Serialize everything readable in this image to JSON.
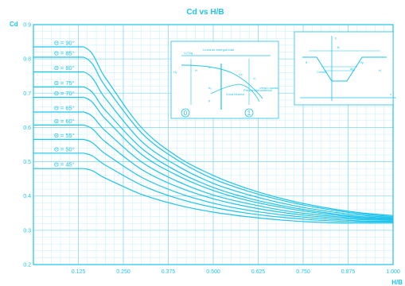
{
  "chart_data": {
    "type": "line",
    "title": "Cd vs H/B",
    "xlabel": "H/B",
    "ylabel": "Cd",
    "xlim": [
      0,
      1.0
    ],
    "ylim": [
      0.2,
      0.9
    ],
    "x_ticks": [
      "0.125",
      "0.250",
      "0.375",
      "0.500",
      "0.625",
      "0.750",
      "0.875",
      "1.000"
    ],
    "y_ticks": [
      "0.2",
      "0.3",
      "0.4",
      "0.5",
      "0.6",
      "0.7",
      "0.8",
      "0.9"
    ],
    "grid": true,
    "legend_position": "left",
    "x": [
      0,
      0.14,
      0.2,
      0.3,
      0.4,
      0.5,
      0.6,
      0.7,
      0.8,
      0.9,
      1.0
    ],
    "series": [
      {
        "name": "Θ = 90°",
        "values": [
          0.835,
          0.835,
          0.745,
          0.6,
          0.515,
          0.46,
          0.42,
          0.39,
          0.368,
          0.352,
          0.343
        ]
      },
      {
        "name": "Θ = 85°",
        "values": [
          0.805,
          0.805,
          0.72,
          0.585,
          0.505,
          0.45,
          0.413,
          0.385,
          0.364,
          0.349,
          0.34
        ]
      },
      {
        "name": "Θ = 80°",
        "values": [
          0.762,
          0.762,
          0.685,
          0.56,
          0.488,
          0.437,
          0.403,
          0.377,
          0.358,
          0.345,
          0.337
        ]
      },
      {
        "name": "Θ = 75°",
        "values": [
          0.718,
          0.718,
          0.65,
          0.54,
          0.472,
          0.425,
          0.393,
          0.37,
          0.353,
          0.341,
          0.335
        ]
      },
      {
        "name": "Θ = 70°",
        "values": [
          0.688,
          0.688,
          0.625,
          0.522,
          0.46,
          0.416,
          0.386,
          0.365,
          0.349,
          0.338,
          0.333
        ]
      },
      {
        "name": "Θ = 65°",
        "values": [
          0.645,
          0.645,
          0.59,
          0.5,
          0.443,
          0.403,
          0.377,
          0.357,
          0.344,
          0.335,
          0.331
        ]
      },
      {
        "name": "Θ = 60°",
        "values": [
          0.607,
          0.607,
          0.558,
          0.478,
          0.427,
          0.392,
          0.368,
          0.351,
          0.339,
          0.332,
          0.329
        ]
      },
      {
        "name": "Θ = 55°",
        "values": [
          0.565,
          0.565,
          0.523,
          0.455,
          0.41,
          0.379,
          0.358,
          0.344,
          0.334,
          0.328,
          0.326
        ]
      },
      {
        "name": "Θ = 50°",
        "values": [
          0.525,
          0.525,
          0.49,
          0.432,
          0.393,
          0.367,
          0.349,
          0.337,
          0.329,
          0.325,
          0.324
        ]
      },
      {
        "name": "Θ = 45°",
        "values": [
          0.48,
          0.48,
          0.452,
          0.405,
          0.374,
          0.353,
          0.339,
          0.329,
          0.323,
          0.321,
          0.321
        ]
      }
    ],
    "inset_left": {
      "labels": [
        "Línea de energía total",
        "Vena Líquida",
        "Presión Atmosférica",
        "Zona Muerta"
      ],
      "sections": [
        "0",
        "1"
      ],
      "symbols": [
        "V₀²/2g",
        "H",
        "h",
        "Hₑ",
        "hₒ",
        "p",
        "Vc",
        "V₁"
      ]
    },
    "inset_right": {
      "labels": [
        "Cresta"
      ],
      "symbols": [
        "y",
        "x",
        "B",
        "dy",
        "Hy",
        "θ",
        "H"
      ]
    }
  },
  "colors": {
    "line": "#1ec3eb",
    "text": "#1ec3eb",
    "grid_minor": "#c4eef9",
    "grid_major": "#8fdcf2",
    "background": "#ffffff"
  }
}
